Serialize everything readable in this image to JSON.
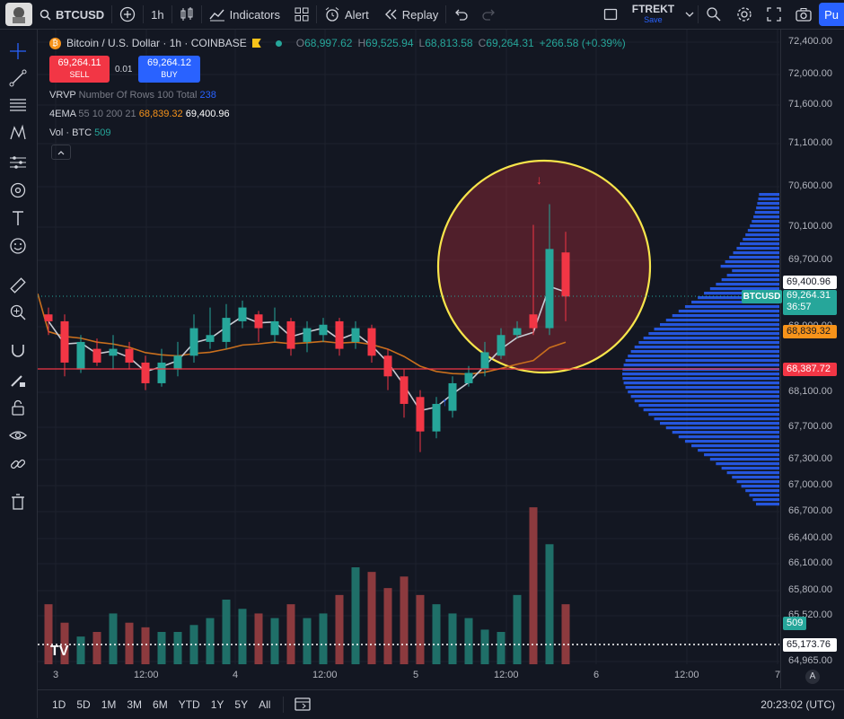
{
  "toolbar": {
    "symbol": "BTCUSD",
    "interval": "1h",
    "indicators": "Indicators",
    "alert": "Alert",
    "replay": "Replay",
    "layout_name": "FTREKT",
    "layout_save": "Save",
    "publish": "Pu"
  },
  "legend": {
    "title": "Bitcoin / U.S. Dollar · 1h · COINBASE",
    "o_label": "O",
    "o_val": "68,997.62",
    "h_label": "H",
    "h_val": "69,525.94",
    "l_label": "L",
    "l_val": "68,813.58",
    "c_label": "C",
    "c_val": "69,264.31",
    "change": "+266.58 (+0.39%)",
    "sell_price": "69,264.11",
    "sell_label": "SELL",
    "spread": "0.01",
    "buy_price": "69,264.12",
    "buy_label": "BUY",
    "vrvp": "VRVP",
    "vrvp_params": "Number Of Rows 100 Total",
    "vrvp_val": "238",
    "ema": "4EMA",
    "ema_params": "55 10 200 21",
    "ema_val1": "68,839.32",
    "ema_val2": "69,400.96",
    "vol": "Vol · BTC",
    "vol_val": "509"
  },
  "price_axis": [
    "72,400.00",
    "72,000.00",
    "71,600.00",
    "71,100.00",
    "70,600.00",
    "70,100.00",
    "69,700.00",
    "68,900.00",
    "68,100.00",
    "67,700.00",
    "67,300.00",
    "67,000.00",
    "66,700.00",
    "66,400.00",
    "66,100.00",
    "65,800.00",
    "65,520.00",
    "64,965.00"
  ],
  "tags": {
    "ema_white": "69,400.96",
    "symbol": "BTCUSD",
    "last": "69,264.31",
    "countdown": "36:57",
    "ema_orange": "68,839.32",
    "hline": "68,387.72",
    "vol": "509",
    "dotted": "65,173.76",
    "auto": "A"
  },
  "time_axis": [
    "3",
    "12:00",
    "4",
    "12:00",
    "5",
    "12:00",
    "6",
    "12:00",
    "7"
  ],
  "bottom": {
    "timeframes": [
      "1D",
      "5D",
      "1M",
      "3M",
      "6M",
      "YTD",
      "1Y",
      "5Y",
      "All"
    ],
    "clock": "20:23:02 (UTC)"
  },
  "colors": {
    "up": "#26a69a",
    "down": "#f23645",
    "ema_slow": "#c96f1d",
    "ema_fast": "#c8cbd3",
    "hline": "#f23645",
    "circle": "#f7e54b",
    "profile": "#2962ff"
  },
  "chart_data": {
    "type": "candlestick",
    "x": [
      "3 02:00",
      "3 04:00",
      "3 06:00",
      "3 08:00",
      "3 10:00",
      "3 12:00",
      "3 14:00",
      "3 16:00",
      "3 18:00",
      "3 20:00",
      "3 22:00",
      "4 00:00",
      "4 02:00",
      "4 04:00",
      "4 06:00",
      "4 08:00",
      "4 10:00",
      "4 12:00",
      "4 14:00",
      "4 16:00",
      "4 18:00",
      "4 20:00",
      "4 22:00",
      "5 00:00",
      "5 02:00",
      "5 04:00",
      "5 06:00",
      "5 08:00",
      "5 10:00",
      "5 12:00",
      "5 14:00",
      "5 16:00",
      "5 18:00"
    ],
    "open": [
      69000,
      68900,
      68200,
      68500,
      68400,
      68500,
      68300,
      68000,
      68200,
      68400,
      68600,
      68600,
      68900,
      69000,
      68700,
      68900,
      68600,
      68700,
      68900,
      68600,
      68800,
      68400,
      68100,
      67800,
      67300,
      67600,
      68000,
      68200,
      68400,
      68700,
      69000,
      68800,
      69900
    ],
    "close": [
      68900,
      68300,
      68600,
      68300,
      68500,
      68300,
      68000,
      68300,
      68400,
      68800,
      68700,
      68950,
      69100,
      68800,
      68900,
      68500,
      68800,
      68850,
      68500,
      68800,
      68400,
      68100,
      67700,
      67300,
      67700,
      68000,
      68150,
      68450,
      68700,
      68800,
      68800,
      69950,
      69260
    ],
    "high": [
      69100,
      69000,
      68700,
      68650,
      68700,
      68600,
      68400,
      68500,
      68600,
      69000,
      69100,
      69150,
      69200,
      69050,
      69100,
      68950,
      68900,
      68950,
      68950,
      68900,
      68850,
      68500,
      68200,
      67900,
      67800,
      68100,
      68250,
      68600,
      68800,
      68900,
      70300,
      70600,
      70200
    ],
    "low": [
      68700,
      68100,
      68150,
      68250,
      68200,
      68200,
      67900,
      67950,
      68100,
      68300,
      68500,
      68500,
      68800,
      68600,
      68600,
      68400,
      68450,
      68600,
      68400,
      68500,
      68300,
      67900,
      67500,
      67000,
      67200,
      67500,
      67950,
      68100,
      68350,
      68650,
      68700,
      68700,
      68900
    ],
    "volume": [
      260,
      180,
      120,
      140,
      220,
      180,
      160,
      140,
      140,
      170,
      200,
      280,
      240,
      220,
      200,
      260,
      200,
      220,
      300,
      420,
      400,
      330,
      380,
      300,
      260,
      220,
      200,
      150,
      140,
      300,
      680,
      520,
      260
    ],
    "ylim": [
      64965,
      72400
    ],
    "overlays": {
      "ema_slow": 68839.32,
      "ema_fast": 69400.96,
      "horizontal_line": 68387.72,
      "volume_dotted": 65173.76
    }
  }
}
